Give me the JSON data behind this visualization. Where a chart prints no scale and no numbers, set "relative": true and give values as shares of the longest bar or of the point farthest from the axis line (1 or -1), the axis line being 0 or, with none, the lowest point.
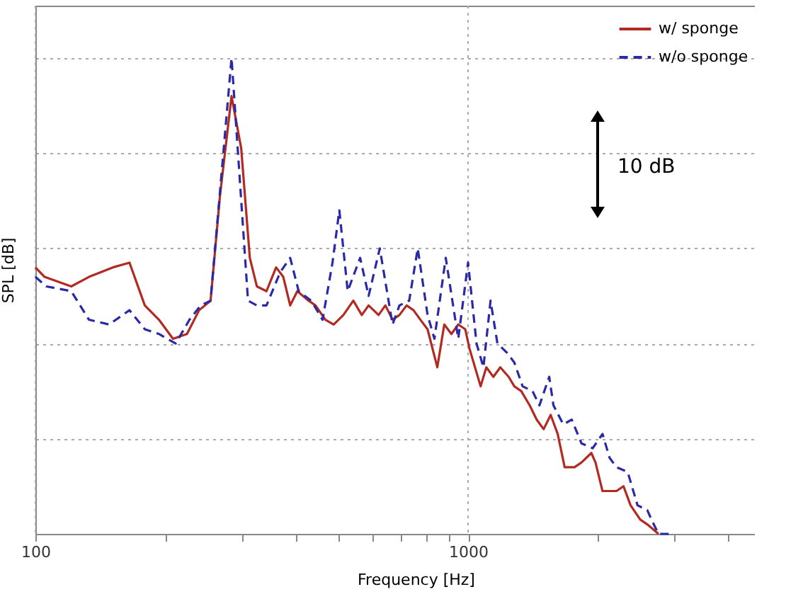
{
  "chart_data": {
    "type": "line",
    "xlabel": "Frequency [Hz]",
    "ylabel": "SPL [dB]",
    "relative": true,
    "log": "x",
    "xlim": [
      100,
      4600
    ],
    "xticks": [
      100,
      {
        "value": 200,
        "label": null
      },
      {
        "value": 300,
        "label": null
      },
      {
        "value": 400,
        "label": null
      },
      {
        "value": 500,
        "label": null
      },
      {
        "value": 600,
        "label": null
      },
      {
        "value": 700,
        "label": null
      },
      {
        "value": 800,
        "label": null
      },
      {
        "value": 900,
        "label": null
      },
      1000,
      {
        "value": 2000,
        "label": null
      },
      {
        "value": 3000,
        "label": null
      },
      {
        "value": 4000,
        "label": null
      }
    ],
    "grid": true,
    "legend": "top right",
    "annotations": [
      "10 dB"
    ],
    "series": [
      {
        "name": "w/ sponge",
        "color": "#b22a22",
        "line_style": "solid",
        "x": [
          100,
          105,
          121,
          133,
          151,
          165,
          179,
          193,
          208,
          224,
          239,
          254,
          267,
          284,
          299,
          313,
          325,
          342,
          360,
          374,
          388,
          403,
          428,
          444,
          468,
          489,
          515,
          543,
          568,
          589,
          621,
          644,
          669,
          694,
          721,
          748,
          776,
          806,
          849,
          881,
          915,
          949,
          985,
          1007,
          1069,
          1102,
          1144,
          1187,
          1241,
          1279,
          1327,
          1388,
          1441,
          1495,
          1552,
          1611,
          1672,
          1762,
          1829,
          1927,
          1970,
          2045,
          2123,
          2203,
          2287,
          2374,
          2500,
          2595,
          2754
        ],
        "values": [
          0.56,
          0.54,
          0.52,
          0.54,
          0.56,
          0.57,
          0.48,
          0.45,
          0.41,
          0.42,
          0.47,
          0.49,
          0.71,
          0.92,
          0.81,
          0.58,
          0.52,
          0.51,
          0.56,
          0.54,
          0.48,
          0.51,
          0.49,
          0.48,
          0.45,
          0.44,
          0.46,
          0.49,
          0.46,
          0.48,
          0.46,
          0.48,
          0.45,
          0.46,
          0.48,
          0.47,
          0.45,
          0.43,
          0.35,
          0.44,
          0.42,
          0.44,
          0.43,
          0.39,
          0.31,
          0.35,
          0.33,
          0.35,
          0.33,
          0.31,
          0.3,
          0.27,
          0.24,
          0.22,
          0.25,
          0.21,
          0.14,
          0.14,
          0.15,
          0.17,
          0.15,
          0.09,
          0.09,
          0.09,
          0.1,
          0.06,
          0.03,
          0.02,
          0
        ]
      },
      {
        "name": "w/o sponge",
        "color": "#2a2aa8",
        "line_style": "dashed",
        "x": [
          100,
          106,
          121,
          133,
          148,
          165,
          179,
          193,
          211,
          227,
          241,
          254,
          284,
          310,
          325,
          342,
          368,
          388,
          406,
          434,
          461,
          486,
          504,
          527,
          563,
          589,
          625,
          669,
          694,
          731,
          765,
          806,
          836,
          888,
          949,
          1000,
          1046,
          1085,
          1127,
          1169,
          1232,
          1279,
          1337,
          1409,
          1462,
          1540,
          1575,
          1660,
          1736,
          1829,
          1941,
          2045,
          2123,
          2203,
          2338,
          2464,
          2595,
          2654,
          2754,
          2969
        ],
        "values": [
          0.54,
          0.52,
          0.51,
          0.45,
          0.44,
          0.47,
          0.43,
          0.42,
          0.4,
          0.45,
          0.48,
          0.49,
          1,
          0.49,
          0.48,
          0.48,
          0.55,
          0.58,
          0.51,
          0.49,
          0.45,
          0.57,
          0.68,
          0.51,
          0.58,
          0.5,
          0.6,
          0.44,
          0.48,
          0.49,
          0.6,
          0.46,
          0.41,
          0.58,
          0.41,
          0.57,
          0.4,
          0.35,
          0.49,
          0.4,
          0.38,
          0.36,
          0.31,
          0.3,
          0.27,
          0.33,
          0.27,
          0.23,
          0.24,
          0.19,
          0.18,
          0.21,
          0.16,
          0.14,
          0.13,
          0.06,
          0.05,
          0.03,
          0,
          0
        ]
      }
    ]
  }
}
